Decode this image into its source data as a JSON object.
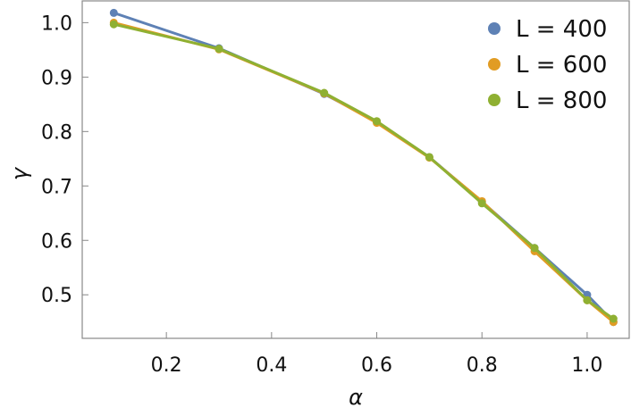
{
  "chart_data": {
    "type": "line",
    "title": "",
    "xlabel": "α",
    "ylabel": "γ",
    "xlim": [
      0.04,
      1.08
    ],
    "ylim": [
      0.42,
      1.04
    ],
    "xticks": [
      0.2,
      0.4,
      0.6,
      0.8,
      1.0
    ],
    "xtick_labels": [
      "0.2",
      "0.4",
      "0.6",
      "0.8",
      "1.0"
    ],
    "yticks": [
      0.5,
      0.6,
      0.7,
      0.8,
      0.9,
      1.0
    ],
    "ytick_labels": [
      "0.5",
      "0.6",
      "0.7",
      "0.8",
      "0.9",
      "1.0"
    ],
    "grid": false,
    "legend_position": "top-right",
    "series": [
      {
        "name": "L = 400",
        "color": "#5e81b5",
        "x": [
          0.1,
          0.3,
          0.5,
          0.6,
          0.7,
          0.8,
          0.9,
          1.0,
          1.05
        ],
        "y": [
          1.018,
          0.953,
          0.869,
          0.818,
          0.753,
          0.671,
          0.586,
          0.5,
          0.45
        ]
      },
      {
        "name": "L = 600",
        "color": "#e19c24",
        "x": [
          0.1,
          0.3,
          0.5,
          0.6,
          0.7,
          0.8,
          0.9,
          1.0,
          1.05
        ],
        "y": [
          1.0,
          0.951,
          0.87,
          0.816,
          0.752,
          0.672,
          0.58,
          0.49,
          0.45
        ]
      },
      {
        "name": "L = 800",
        "color": "#8fb032",
        "x": [
          0.1,
          0.3,
          0.5,
          0.6,
          0.7,
          0.8,
          0.9,
          1.0,
          1.05
        ],
        "y": [
          0.997,
          0.952,
          0.871,
          0.819,
          0.753,
          0.668,
          0.586,
          0.49,
          0.456
        ]
      }
    ]
  }
}
